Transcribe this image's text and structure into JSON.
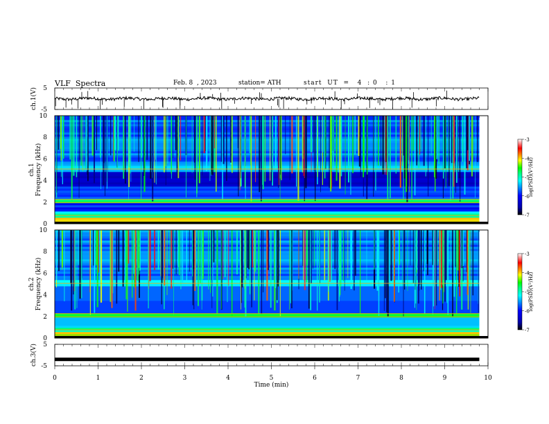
{
  "header": {
    "title": "VLF  Spectra",
    "date": "Feb. 8  , 2023",
    "station": "station= ATH",
    "start": "start  UT  =   4  : 0   : 1"
  },
  "colors": {
    "spectrogram_scale": [
      "#000000",
      "#0000aa",
      "#0000ff",
      "#0080ff",
      "#00ffff",
      "#00ff80",
      "#00ff00",
      "#ffff00",
      "#ff8000",
      "#ff0000",
      "#ffffff"
    ]
  },
  "chart_data": [
    {
      "type": "line",
      "name": "ch.1",
      "ylabel": "ch.1(V)",
      "ylim": [
        -5,
        5
      ],
      "yticks": [
        "5",
        "-5"
      ],
      "baseline": 0,
      "description": "waveform trace"
    },
    {
      "type": "heatmap",
      "name": "ch.1 spectrogram",
      "ylabel": "ch.1\nFrequency  (kHz)",
      "ylabel_lines": [
        "ch.1",
        "Frequency  (kHz)"
      ],
      "ylim": [
        0,
        10
      ],
      "yticks": [
        "0",
        "2",
        "4",
        "6",
        "8",
        "10"
      ],
      "colorbar": {
        "label": "log(PSD)(V²/Hz)",
        "range": [
          -7,
          -3
        ],
        "ticks": [
          "-3",
          "-4",
          "-5",
          "-6",
          "-7"
        ]
      }
    },
    {
      "type": "heatmap",
      "name": "ch.2 spectrogram",
      "ylabel_lines": [
        "ch.2",
        "Frequency  (kHz)"
      ],
      "ylim": [
        0,
        10
      ],
      "yticks": [
        "0",
        "2",
        "4",
        "6",
        "8",
        "10"
      ],
      "colorbar": {
        "label": "log(PSD)(V²/Hz)",
        "range": [
          -7,
          -3
        ],
        "ticks": [
          "-3",
          "-4",
          "-5",
          "-6",
          "-7"
        ]
      }
    },
    {
      "type": "line",
      "name": "ch.3",
      "ylabel": "ch.3(V)",
      "ylim": [
        -5,
        5
      ],
      "yticks": [
        "5",
        "-5"
      ],
      "baseline": -2
    }
  ],
  "xaxis": {
    "label": "Time  (min)",
    "range": [
      0,
      10
    ],
    "ticks": [
      "0",
      "1",
      "2",
      "3",
      "4",
      "5",
      "6",
      "7",
      "8",
      "9",
      "10"
    ],
    "data_end": 9.8
  }
}
